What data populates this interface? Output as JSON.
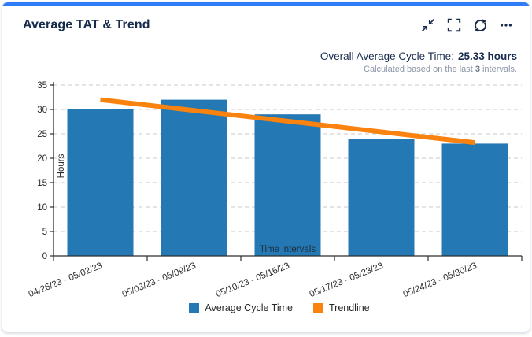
{
  "header": {
    "title": "Average TAT & Trend",
    "accent_color": "#2e7cf6",
    "toolbar": {
      "buttons": [
        {
          "icon": "collapse-icon"
        },
        {
          "icon": "fullscreen-icon"
        },
        {
          "icon": "refresh-icon"
        },
        {
          "icon": "more-options-icon"
        }
      ]
    }
  },
  "summary": {
    "label": "Overall Average Cycle Time:",
    "value": "25.33 hours",
    "note_prefix": "Calculated based on the last",
    "note_bold": "3",
    "note_suffix": "intervals."
  },
  "chart_data": {
    "type": "bar",
    "categories": [
      "04/26/23 - 05/02/23",
      "05/03/23 - 05/09/23",
      "05/10/23 - 05/16/23",
      "05/17/23 - 05/23/23",
      "05/24/23 - 05/30/23"
    ],
    "series": [
      {
        "name": "Average Cycle Time",
        "type": "bar",
        "color": "#2478b4",
        "values": [
          30,
          32,
          29,
          24,
          23
        ]
      },
      {
        "name": "Trendline",
        "type": "line",
        "color": "#fa820f",
        "values": [
          32,
          29.8,
          27.6,
          25.4,
          23.2
        ]
      }
    ],
    "xlabel": "Time intervals",
    "ylabel": "Hours",
    "ylim": [
      0,
      35
    ],
    "ytick_step": 5,
    "grid": "horizontal-dashed",
    "legend_position": "bottom",
    "axis_color": "#2f2f2f",
    "grid_color": "#c9c9c9",
    "tick_label_color": "#2b2b2b"
  }
}
